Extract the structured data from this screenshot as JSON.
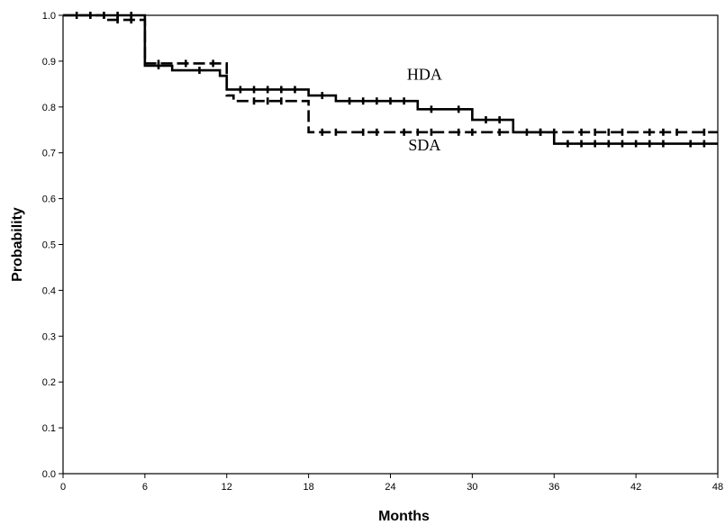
{
  "chart_data": {
    "type": "line",
    "subtype": "kaplan-meier step curves with censoring marks",
    "title": "",
    "xlabel": "Months",
    "ylabel": "Probability",
    "xlim": [
      0,
      48
    ],
    "ylim": [
      0,
      1.0
    ],
    "xticks": [
      "0",
      "6",
      "12",
      "18",
      "24",
      "30",
      "36",
      "42",
      "48"
    ],
    "yticks": [
      "0.0",
      "0.1",
      "0.2",
      "0.3",
      "0.4",
      "0.5",
      "0.6",
      "0.7",
      "0.8",
      "0.9",
      "1.0"
    ],
    "grid": false,
    "legend": "none (direct labels on curves)",
    "series": [
      {
        "name": "HDA",
        "line_style": "solid",
        "color": "#000000",
        "steps": [
          [
            0,
            1.0
          ],
          [
            6,
            0.89
          ],
          [
            8,
            0.88
          ],
          [
            11.5,
            0.868
          ],
          [
            12,
            0.838
          ],
          [
            18,
            0.825
          ],
          [
            20,
            0.813
          ],
          [
            26,
            0.795
          ],
          [
            30,
            0.772
          ],
          [
            33,
            0.745
          ],
          [
            36,
            0.72
          ],
          [
            48,
            0.72
          ]
        ],
        "censored": [
          1,
          2,
          3,
          4,
          5,
          7,
          10,
          13,
          14,
          15,
          16,
          17,
          19,
          21,
          22,
          23,
          24,
          25,
          27,
          29,
          31,
          32,
          35,
          37,
          38,
          39,
          40,
          41,
          42,
          43,
          44,
          46,
          47
        ]
      },
      {
        "name": "SDA",
        "line_style": "dashed",
        "color": "#000000",
        "steps": [
          [
            0,
            1.0
          ],
          [
            3,
            0.99
          ],
          [
            6,
            0.895
          ],
          [
            12,
            0.825
          ],
          [
            12.5,
            0.813
          ],
          [
            18,
            0.745
          ],
          [
            48,
            0.745
          ]
        ],
        "censored": [
          2,
          4,
          5,
          7,
          9,
          11,
          14,
          15,
          16,
          19,
          20,
          22,
          23,
          25,
          26,
          27,
          29,
          30,
          32,
          34,
          35,
          36,
          38,
          39,
          40,
          41,
          43,
          44,
          45,
          47
        ]
      }
    ]
  }
}
